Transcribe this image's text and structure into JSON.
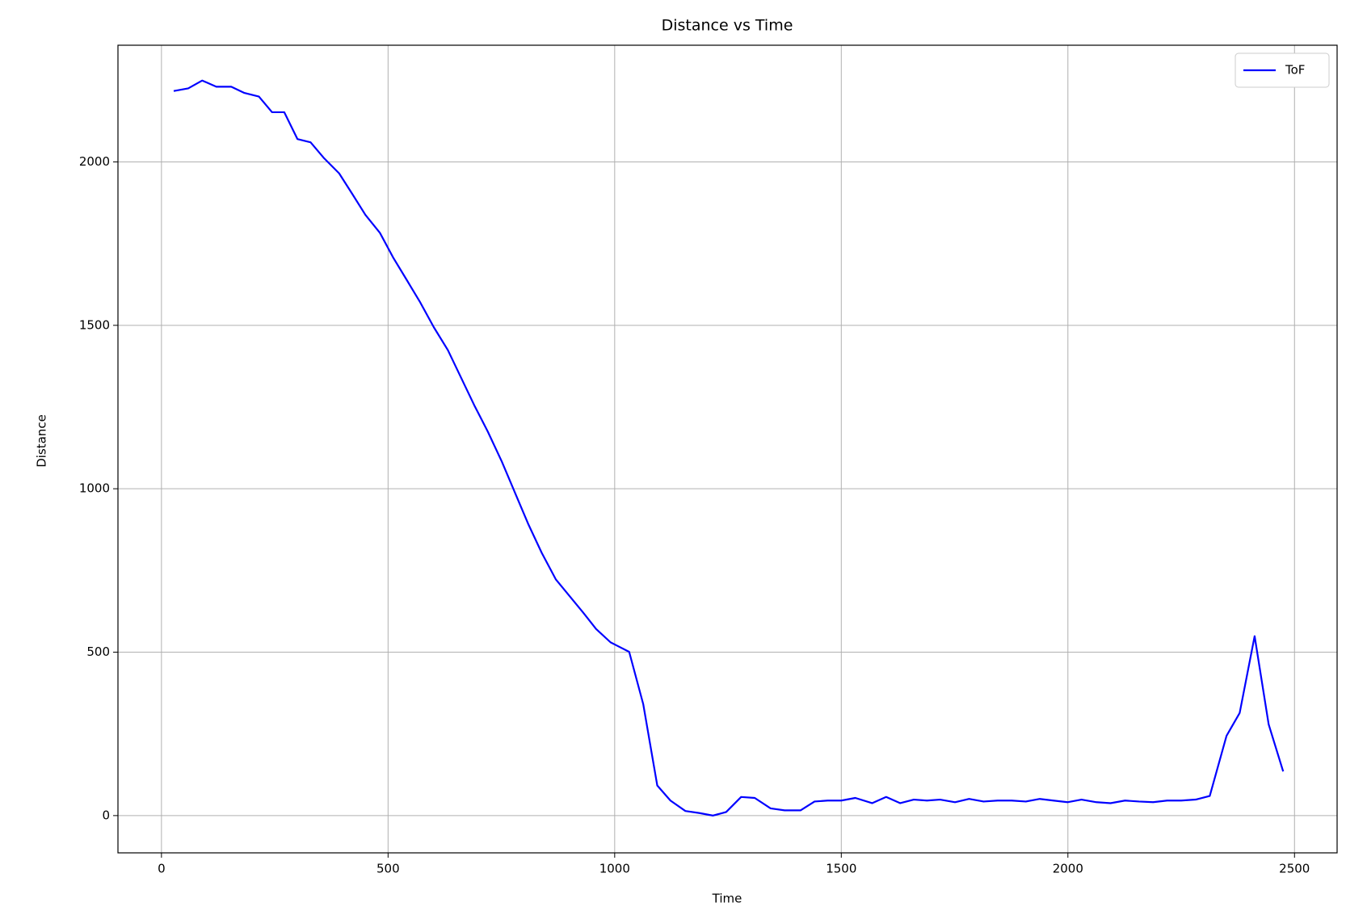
{
  "chart_data": {
    "type": "line",
    "title": "Distance vs Time",
    "x_label": "Time",
    "y_label": "Distance",
    "x": [
      27,
      59,
      90,
      121,
      154,
      183,
      215,
      244,
      271,
      300,
      329,
      359,
      392,
      421,
      450,
      482,
      511,
      542,
      571,
      601,
      632,
      661,
      690,
      720,
      751,
      780,
      809,
      839,
      870,
      899,
      930,
      959,
      991,
      1032,
      1063,
      1094,
      1123,
      1156,
      1186,
      1217,
      1246,
      1279,
      1309,
      1344,
      1375,
      1410,
      1441,
      1470,
      1500,
      1531,
      1568,
      1599,
      1630,
      1660,
      1689,
      1718,
      1751,
      1782,
      1814,
      1845,
      1876,
      1907,
      1938,
      1968,
      1999,
      2030,
      2063,
      2094,
      2126,
      2157,
      2188,
      2219,
      2250,
      2282,
      2313,
      2350,
      2379,
      2412,
      2443,
      2475
    ],
    "series": [
      {
        "name": "ToF",
        "color": "#0000ff",
        "values": [
          2217,
          2225,
          2249,
          2230,
          2230,
          2211,
          2200,
          2152,
          2152,
          2070,
          2060,
          2011,
          1965,
          1902,
          1838,
          1783,
          1708,
          1637,
          1570,
          1494,
          1424,
          1340,
          1256,
          1175,
          1083,
          988,
          893,
          804,
          723,
          674,
          622,
          571,
          530,
          501,
          341,
          92,
          46,
          14,
          8,
          0,
          11,
          57,
          54,
          22,
          16,
          16,
          43,
          46,
          46,
          54,
          38,
          57,
          38,
          49,
          46,
          49,
          41,
          51,
          43,
          46,
          46,
          43,
          51,
          46,
          41,
          49,
          41,
          38,
          46,
          43,
          41,
          46,
          46,
          49,
          60,
          244,
          314,
          549,
          279,
          135
        ]
      }
    ],
    "xlim": [
      -96,
      2594
    ],
    "ylim": [
      -114,
      2357
    ],
    "xticks": [
      0,
      500,
      1000,
      1500,
      2000,
      2500
    ],
    "yticks": [
      0,
      500,
      1000,
      1500,
      2000
    ],
    "grid": true,
    "legend": "upper right"
  }
}
